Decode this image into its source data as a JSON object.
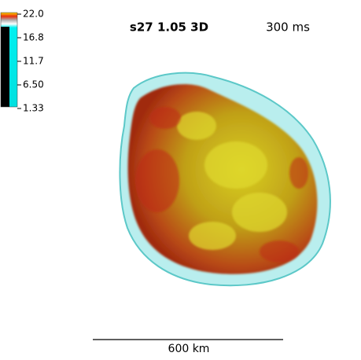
{
  "colorbar": {
    "labels": [
      "22.0",
      "16.8",
      "11.7",
      "6.50",
      "1.33"
    ]
  },
  "header": {
    "title": "s27 1.05 3D",
    "time": "300 ms"
  },
  "scale_bar": {
    "label": "600 km"
  }
}
